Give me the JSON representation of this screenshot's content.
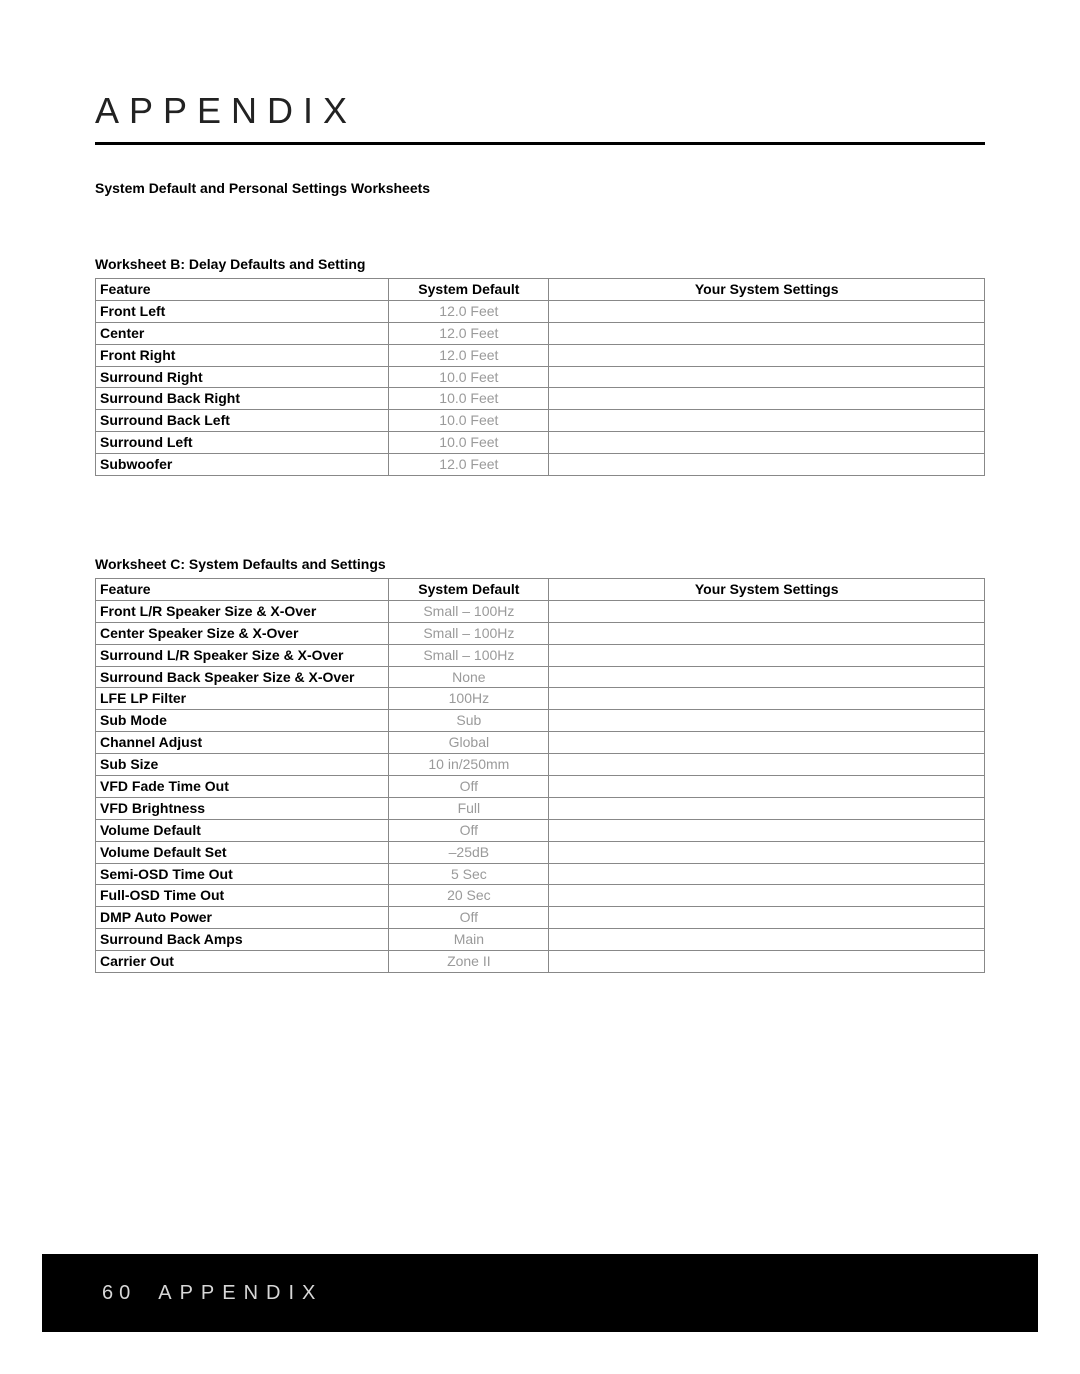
{
  "header": {
    "title": "APPENDIX",
    "subtitle": "System Default and Personal Settings Worksheets",
    "title_color": "#222222",
    "title_fontsize": 36,
    "title_letter_spacing": 10,
    "rule_color": "#000000",
    "rule_thickness": 3
  },
  "worksheetB": {
    "title": "Worksheet B: Delay Defaults and Setting",
    "headers": {
      "feature": "Feature",
      "default": "System Default",
      "settings": "Your System Settings"
    },
    "rows": [
      {
        "feature": "Front Left",
        "default": "12.0 Feet",
        "setting": ""
      },
      {
        "feature": "Center",
        "default": "12.0 Feet",
        "setting": ""
      },
      {
        "feature": "Front Right",
        "default": "12.0 Feet",
        "setting": ""
      },
      {
        "feature": "Surround Right",
        "default": "10.0 Feet",
        "setting": ""
      },
      {
        "feature": "Surround Back Right",
        "default": "10.0 Feet",
        "setting": ""
      },
      {
        "feature": "Surround Back Left",
        "default": "10.0 Feet",
        "setting": ""
      },
      {
        "feature": "Surround Left",
        "default": "10.0 Feet",
        "setting": ""
      },
      {
        "feature": "Subwoofer",
        "default": "12.0 Feet",
        "setting": ""
      }
    ]
  },
  "worksheetC": {
    "title": "Worksheet C: System Defaults and Settings",
    "headers": {
      "feature": "Feature",
      "default": "System Default",
      "settings": "Your System Settings"
    },
    "rows": [
      {
        "feature": "Front L/R Speaker Size & X-Over",
        "default": "Small – 100Hz",
        "setting": ""
      },
      {
        "feature": "Center Speaker Size & X-Over",
        "default": "Small – 100Hz",
        "setting": ""
      },
      {
        "feature": "Surround L/R Speaker Size & X-Over",
        "default": "Small – 100Hz",
        "setting": ""
      },
      {
        "feature": "Surround Back Speaker Size & X-Over",
        "default": "None",
        "setting": ""
      },
      {
        "feature": "LFE LP Filter",
        "default": "100Hz",
        "setting": ""
      },
      {
        "feature": "Sub Mode",
        "default": "Sub",
        "setting": ""
      },
      {
        "feature": "Channel Adjust",
        "default": "Global",
        "setting": ""
      },
      {
        "feature": "Sub Size",
        "default": "10 in/250mm",
        "setting": ""
      },
      {
        "feature": "VFD Fade Time Out",
        "default": "Off",
        "setting": ""
      },
      {
        "feature": "VFD Brightness",
        "default": "Full",
        "setting": ""
      },
      {
        "feature": "Volume Default",
        "default": "Off",
        "setting": ""
      },
      {
        "feature": "Volume Default Set",
        "default": "–25dB",
        "setting": ""
      },
      {
        "feature": "Semi-OSD Time Out",
        "default": "5 Sec",
        "setting": ""
      },
      {
        "feature": "Full-OSD Time Out",
        "default": "20 Sec",
        "setting": ""
      },
      {
        "feature": "DMP Auto Power",
        "default": "Off",
        "setting": ""
      },
      {
        "feature": "Surround Back Amps",
        "default": "Main",
        "setting": ""
      },
      {
        "feature": "Carrier Out",
        "default": "Zone II",
        "setting": ""
      }
    ]
  },
  "tableStyle": {
    "border_color": "#888888",
    "feature_font_weight": "bold",
    "feature_font_color": "#000000",
    "default_font_color": "#9a9a9a",
    "cell_fontsize": 14,
    "col_widths_pct": [
      33,
      18,
      49
    ]
  },
  "footer": {
    "page_number": "60",
    "label": "APPENDIX",
    "background": "#000000",
    "text_color": "#d7d7d7",
    "fontsize": 20,
    "letter_spacing": 8
  }
}
